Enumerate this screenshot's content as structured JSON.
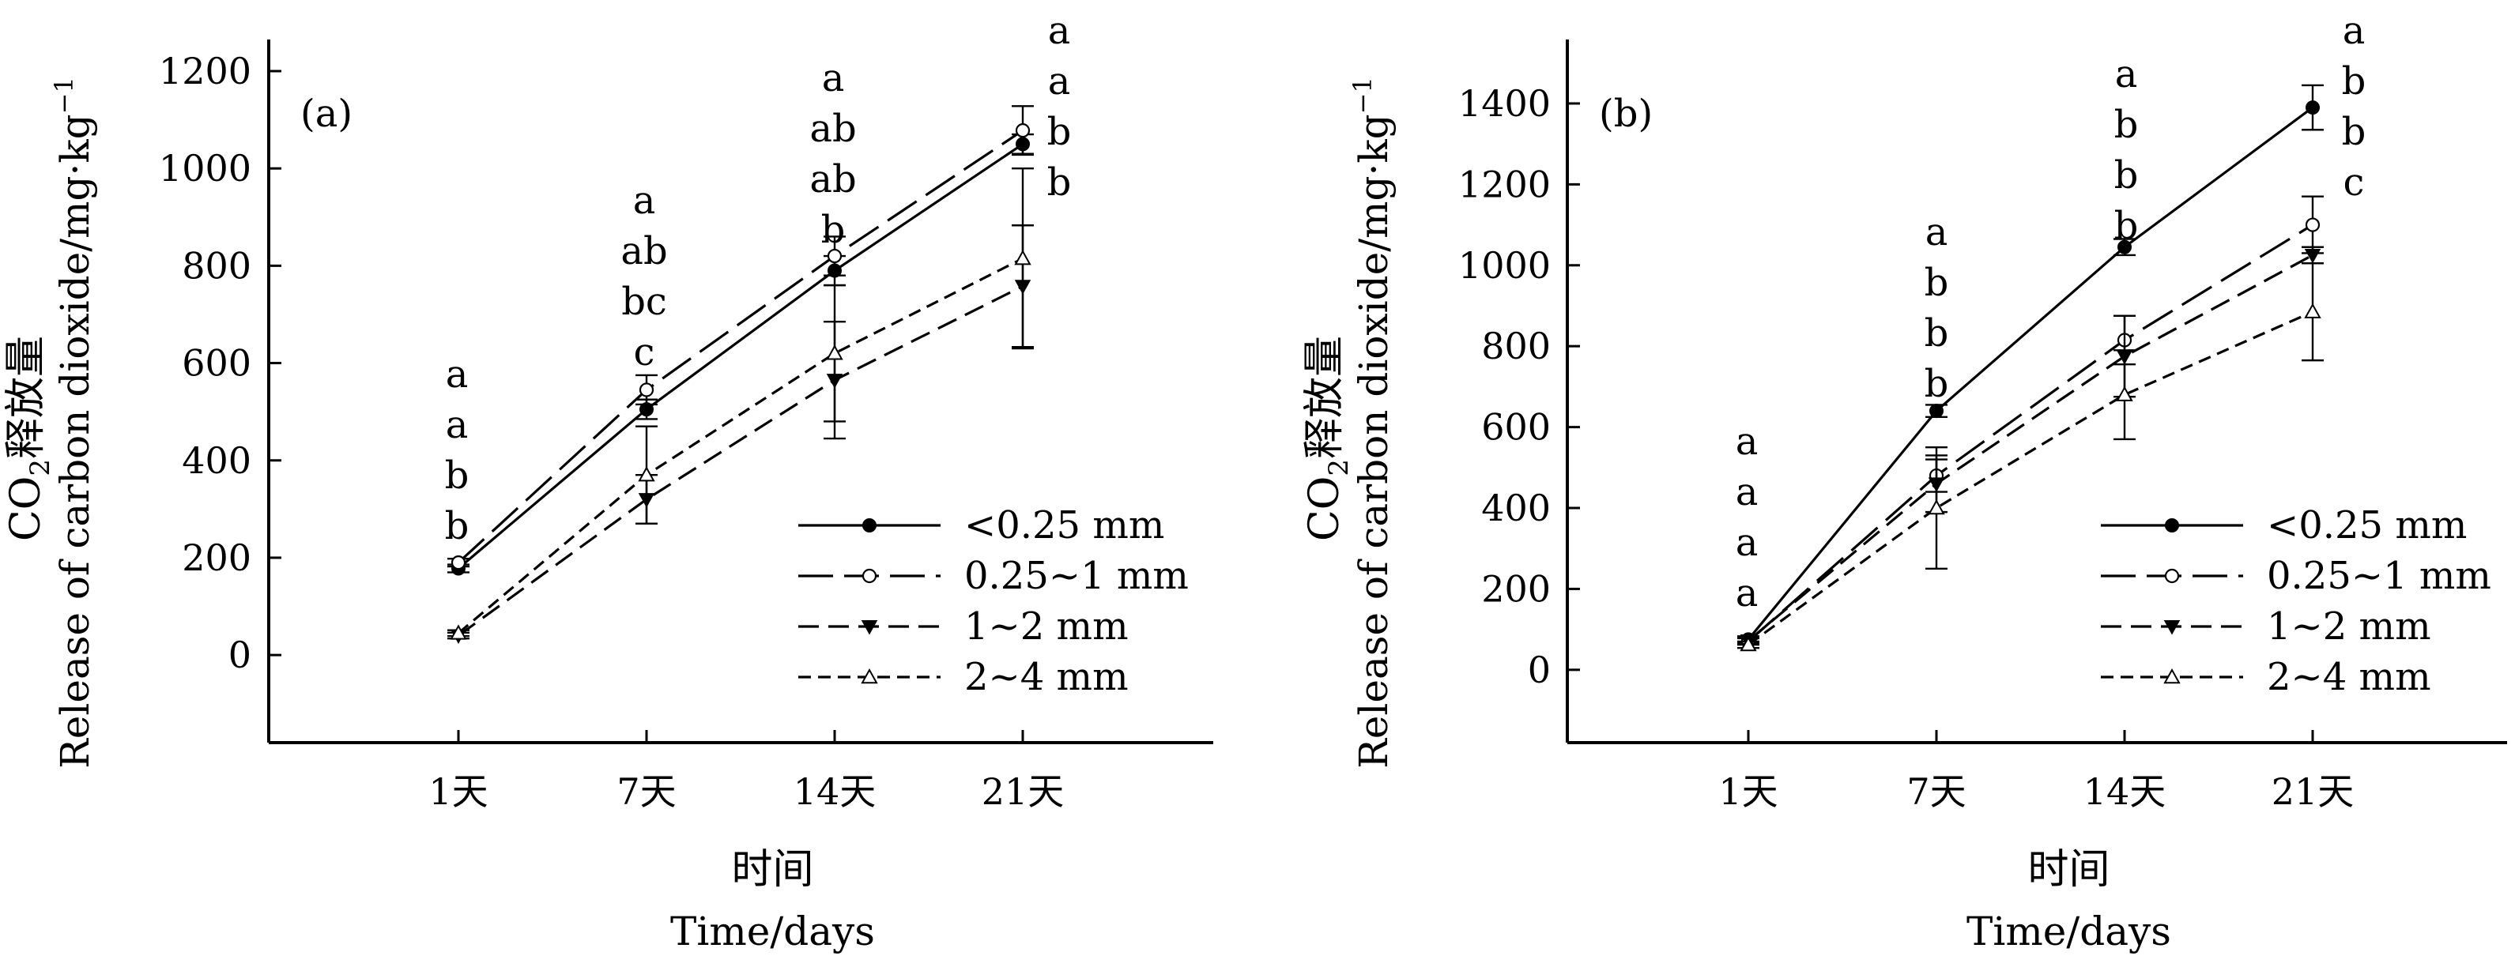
{
  "x_label_cn": "时间",
  "x_label_en": "Time/days",
  "y_label_cn_prefix": "CO",
  "y_label_cn_sub": "2",
  "y_label_cn_suffix": "释放量",
  "y_label_en": "Release of carbon dioxide/mg·kg",
  "y_label_en_sup": "−1",
  "legend": [
    {
      "name": "<0.25 mm",
      "marker": "filled-circle",
      "dash": "solid"
    },
    {
      "name": "0.25~1 mm",
      "marker": "open-circle",
      "dash": "long"
    },
    {
      "name": "1~2 mm",
      "marker": "filled-triangle-down",
      "dash": "medium"
    },
    {
      "name": "2~4 mm",
      "marker": "open-triangle-up",
      "dash": "short"
    }
  ],
  "chart_data": [
    {
      "type": "line",
      "panel_label": "(a)",
      "categories": [
        "1天",
        "7天",
        "14天",
        "21天"
      ],
      "ylim": [
        -180,
        1200
      ],
      "yticks": [
        0,
        200,
        400,
        600,
        800,
        1000,
        1200
      ],
      "grid": false,
      "legend_position": "bottom-right",
      "series": [
        {
          "name": "<0.25 mm",
          "values": [
            178,
            505,
            790,
            1050
          ],
          "errors": [
            8,
            20,
            30,
            20
          ]
        },
        {
          "name": "0.25~1 mm",
          "values": [
            190,
            545,
            820,
            1078
          ],
          "errors": [
            8,
            30,
            40,
            50
          ]
        },
        {
          "name": "1~2 mm",
          "values": [
            40,
            320,
            565,
            758
          ],
          "errors": [
            6,
            50,
            120,
            125
          ]
        },
        {
          "name": "2~4 mm",
          "values": [
            45,
            370,
            620,
            815
          ],
          "errors": [
            6,
            100,
            140,
            185
          ]
        }
      ],
      "significance_letters": [
        [
          "a",
          "a",
          "b",
          "b"
        ],
        [
          "a",
          "ab",
          "bc",
          "c"
        ],
        [
          "a",
          "ab",
          "ab",
          "b"
        ],
        [
          "a",
          "a",
          "b",
          "b"
        ]
      ]
    },
    {
      "type": "line",
      "panel_label": "(b)",
      "categories": [
        "1天",
        "7天",
        "14天",
        "21天"
      ],
      "ylim": [
        -180,
        1480
      ],
      "yticks": [
        0,
        200,
        400,
        600,
        800,
        1000,
        1200,
        1400
      ],
      "grid": false,
      "legend_position": "bottom-right",
      "series": [
        {
          "name": "<0.25 mm",
          "values": [
            75,
            640,
            1045,
            1390
          ],
          "errors": [
            8,
            15,
            20,
            55
          ]
        },
        {
          "name": "0.25~1 mm",
          "values": [
            70,
            480,
            815,
            1100
          ],
          "errors": [
            8,
            40,
            60,
            70
          ]
        },
        {
          "name": "1~2 mm",
          "values": [
            72,
            460,
            775,
            1025
          ],
          "errors": [
            8,
            70,
            100,
            20
          ]
        },
        {
          "name": "2~4 mm",
          "values": [
            62,
            400,
            680,
            885
          ],
          "errors": [
            8,
            150,
            110,
            120
          ]
        }
      ],
      "significance_letters": [
        [
          "a",
          "a",
          "a",
          "a"
        ],
        [
          "a",
          "b",
          "b",
          "b"
        ],
        [
          "a",
          "b",
          "b",
          "b"
        ],
        [
          "a",
          "b",
          "b",
          "c"
        ]
      ]
    }
  ]
}
